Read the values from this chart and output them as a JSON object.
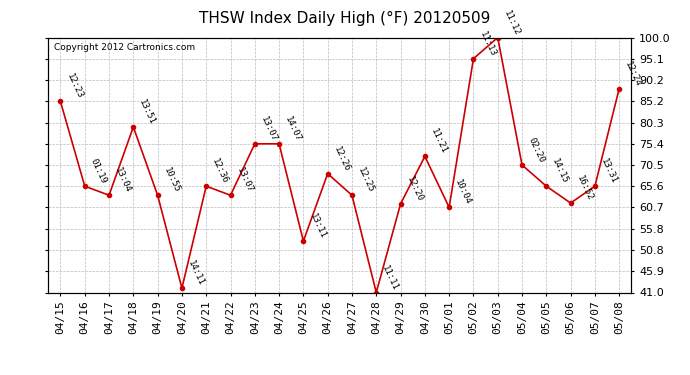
{
  "title": "THSW Index Daily High (°F) 20120509",
  "copyright": "Copyright 2012 Cartronics.com",
  "x_labels": [
    "04/15",
    "04/16",
    "04/17",
    "04/18",
    "04/19",
    "04/20",
    "04/21",
    "04/22",
    "04/23",
    "04/24",
    "04/25",
    "04/26",
    "04/27",
    "04/28",
    "04/29",
    "04/30",
    "05/01",
    "05/02",
    "05/03",
    "05/04",
    "05/05",
    "05/06",
    "05/07",
    "05/08"
  ],
  "y_values": [
    85.2,
    65.6,
    63.5,
    79.3,
    63.5,
    42.0,
    65.6,
    63.5,
    75.4,
    75.4,
    52.9,
    68.5,
    63.5,
    41.0,
    61.5,
    72.5,
    60.7,
    95.1,
    100.0,
    70.5,
    65.6,
    61.7,
    65.6,
    88.2
  ],
  "annotations": [
    "12:23",
    "01:19",
    "13:04",
    "13:51",
    "10:55",
    "14:11",
    "12:36",
    "13:07",
    "13:07",
    "14:07",
    "13:11",
    "12:26",
    "12:25",
    "11:11",
    "12:20",
    "11:21",
    "10:04",
    "11:13",
    "11:12",
    "02:20",
    "14:15",
    "16:52",
    "13:31",
    "12:24"
  ],
  "line_color": "#cc0000",
  "marker_color": "#cc0000",
  "bg_color": "#ffffff",
  "grid_color": "#bbbbbb",
  "ylim_min": 41.0,
  "ylim_max": 100.0,
  "yticks": [
    41.0,
    45.9,
    50.8,
    55.8,
    60.7,
    65.6,
    70.5,
    75.4,
    80.3,
    85.2,
    90.2,
    95.1,
    100.0
  ],
  "title_fontsize": 11,
  "tick_fontsize": 8,
  "annotation_fontsize": 6.5
}
